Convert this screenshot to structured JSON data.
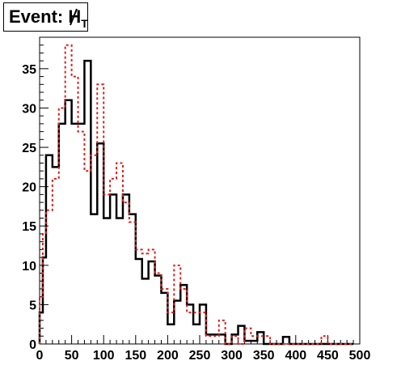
{
  "chart_data": {
    "type": "histogram",
    "title": "Event: H̸T",
    "title_parts": {
      "prefix": "Event: ",
      "symbol": "H",
      "subscript": "T"
    },
    "xlim": [
      0,
      500
    ],
    "ylim": [
      0,
      39
    ],
    "bin_width": 10,
    "x_ticks": [
      0,
      50,
      100,
      150,
      200,
      250,
      300,
      350,
      400,
      450,
      500
    ],
    "y_ticks": [
      0,
      5,
      10,
      15,
      20,
      25,
      30,
      35
    ],
    "x_tick_labels": [
      "0",
      "50",
      "100",
      "150",
      "200",
      "250",
      "300",
      "350",
      "400",
      "450",
      "500"
    ],
    "y_tick_labels": [
      "0",
      "5",
      "10",
      "15",
      "20",
      "25",
      "30",
      "35"
    ],
    "grid": false,
    "series": [
      {
        "style": "solid",
        "color": "#000000",
        "bin_edges_start": [
          0,
          5,
          10,
          20,
          30,
          40,
          50,
          60,
          70,
          80,
          90,
          100,
          110,
          120,
          130,
          140,
          150,
          160,
          170,
          180,
          190,
          200,
          210,
          220,
          230,
          240,
          250,
          260,
          270,
          280,
          290,
          300,
          310,
          320,
          330,
          340,
          350,
          360,
          370,
          380,
          390,
          400,
          410,
          420,
          430,
          440,
          450,
          460,
          470,
          480,
          490
        ],
        "values": [
          4,
          11,
          24,
          22.5,
          28,
          31,
          28,
          28,
          36,
          16.5,
          25.5,
          16,
          19,
          16,
          19,
          16.5,
          10.8,
          8.3,
          10.5,
          8.7,
          6.5,
          2.5,
          5.5,
          7.5,
          5,
          2.5,
          5,
          1.2,
          1.2,
          1.2,
          0,
          1.2,
          2.3,
          0.4,
          0.4,
          1.5,
          0,
          0,
          0,
          0.9,
          0,
          0,
          0,
          0,
          0,
          0,
          0,
          0,
          0,
          0
        ]
      },
      {
        "style": "dashed",
        "color": "#e01e1e",
        "bin_edges_start": [
          0,
          5,
          10,
          20,
          30,
          40,
          50,
          60,
          70,
          80,
          90,
          100,
          110,
          120,
          130,
          140,
          150,
          160,
          170,
          180,
          190,
          200,
          210,
          220,
          230,
          240,
          250,
          260,
          270,
          280,
          290,
          300,
          310,
          320,
          330,
          340,
          350,
          360,
          370,
          380,
          390,
          400,
          410,
          420,
          430,
          440,
          450,
          460,
          470,
          480,
          490
        ],
        "values": [
          6,
          14,
          17,
          21,
          30,
          38,
          34,
          27,
          22,
          24,
          33,
          19,
          21,
          23,
          18,
          15.5,
          12,
          11.5,
          12,
          9,
          7,
          4,
          10,
          7,
          4,
          4,
          4,
          1,
          1,
          3,
          0,
          1,
          0,
          2,
          1,
          1,
          1,
          0,
          0,
          0,
          0,
          0,
          0,
          0,
          0,
          1,
          0,
          0,
          0,
          0
        ]
      }
    ]
  }
}
